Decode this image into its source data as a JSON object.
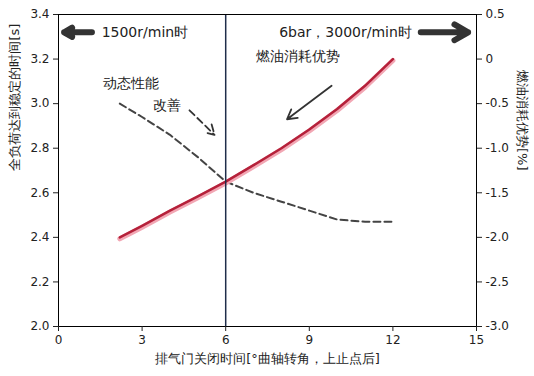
{
  "chart_data": {
    "type": "line",
    "x_label": "排气门关闭时间[°曲轴转角，上止点后]",
    "y_label": "全负荷达到稳定的时间[s]",
    "y2_label": "燃油消耗优势[%]",
    "xlim": [
      0,
      15
    ],
    "xticks": [
      0,
      3,
      6,
      9,
      12,
      15
    ],
    "ylim": [
      2,
      3.4
    ],
    "yticks": [
      {
        "value": 2,
        "label": "2.0"
      },
      2.2,
      2.4,
      2.6,
      2.8,
      {
        "value": 3,
        "label": "3.0"
      },
      3.2,
      3.4
    ],
    "y2lim": [
      -3,
      0.5
    ],
    "y2ticks": [
      0.5,
      0,
      -0.5,
      {
        "value": -1,
        "label": "-1.0"
      },
      -1.5,
      {
        "value": -2,
        "label": "-2.0"
      },
      -2.5,
      {
        "value": -3,
        "label": "-3.0"
      }
    ],
    "grid": false,
    "x": [
      2.2,
      3,
      4,
      5,
      6,
      7,
      8,
      9,
      10,
      11,
      12
    ],
    "series": [
      {
        "color": "#444444",
        "line_style": "dashed",
        "values": [
          3.0,
          2.94,
          2.86,
          2.76,
          2.65,
          2.6,
          2.56,
          2.52,
          2.48,
          2.47,
          2.47
        ]
      },
      {
        "axis": "y2",
        "color": "#b5213a",
        "line_style": "solid",
        "values": [
          -2.0,
          -1.87,
          -1.7,
          -1.54,
          -1.375,
          -1.19,
          -1.0,
          -0.79,
          -0.56,
          -0.3,
          0
        ]
      }
    ],
    "vertical_line_x": 6,
    "annotations": [
      {
        "text": "1500r/min时",
        "x": 3.1,
        "y": 3.32
      },
      {
        "text": "6bar，3000r/min时",
        "x": 10.3,
        "y": 3.32
      },
      {
        "text": "动态性能",
        "x": 2.6,
        "y": 3.09
      },
      {
        "text": "改善",
        "x": 3.9,
        "y": 2.99
      },
      {
        "text": "燃油消耗优势",
        "x": 8.6,
        "y": 3.21
      }
    ],
    "arrows": [
      {
        "x1": 1.2,
        "y1": 3.32,
        "x2": 0.2,
        "y2": 3.32,
        "line_style": "solid"
      },
      {
        "x1": 13.0,
        "y1": 3.32,
        "x2": 14.7,
        "y2": 3.32,
        "line_style": "solid"
      },
      {
        "x1": 4.7,
        "y1": 2.97,
        "x2": 5.6,
        "y2": 2.86,
        "line_style": "dashed"
      },
      {
        "x1": 9.8,
        "y1": 3.08,
        "x2": 8.2,
        "y2": 2.93,
        "line_style": "solid"
      }
    ]
  }
}
